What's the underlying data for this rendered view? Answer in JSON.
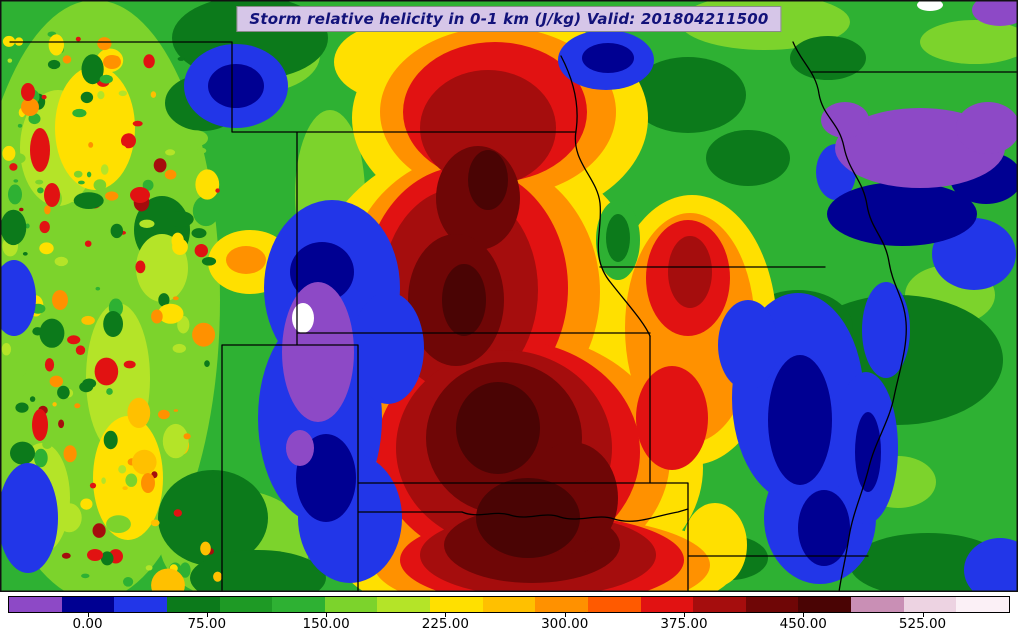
{
  "title": {
    "text": "Storm relative helicity in 0-1 km (J/kg) Valid: 201804211500",
    "bg": "#d6c6e8",
    "fg": "#12127a"
  },
  "map": {
    "description": "Filled contour field of 0-1 km storm relative helicity over the central United States with state borders and rivers",
    "palette": {
      "purple": "#8d49c6",
      "navy": "#000092",
      "blue": "#2236e8",
      "darkgreen": "#0c7a1b",
      "green": "#2eb133",
      "lightgreen": "#7cd32c",
      "yellowgreen": "#b4e428",
      "yellow": "#ffe000",
      "amber": "#ffc000",
      "orange": "#ff9100",
      "darkorange": "#ff5a00",
      "red": "#e11212",
      "darkred": "#a50d0d",
      "maroon": "#6f0606",
      "darkest": "#4a0404",
      "pink": "#c98fb5",
      "lightpink": "#edd3e2",
      "palepink": "#fbf0f6",
      "white": "#ffffff",
      "border": "#000000"
    }
  },
  "chart_data": {
    "type": "heatmap",
    "title": "Storm relative helicity in 0-1 km (J/kg) Valid: 201804211500",
    "field": "storm relative helicity 0-1 km",
    "units": "J/kg",
    "valid": "201804211500",
    "colorbar": {
      "orientation": "horizontal",
      "min": -50,
      "max": 580,
      "tick_values": [
        0,
        75,
        150,
        225,
        300,
        375,
        450,
        525
      ],
      "tick_labels": [
        "0.00",
        "75.00",
        "150.00",
        "225.00",
        "300.00",
        "375.00",
        "450.00",
        "525.00"
      ],
      "colors": [
        "#8d49c6",
        "#000092",
        "#2236e8",
        "#0c7a1b",
        "#1e9a25",
        "#2eb133",
        "#7cd32c",
        "#b4e428",
        "#ffe000",
        "#ffc000",
        "#ff9100",
        "#ff5a00",
        "#e11212",
        "#a50d0d",
        "#6f0606",
        "#4a0404",
        "#c98fb5",
        "#edd3e2",
        "#fbf0f6"
      ]
    },
    "notable_regions": [
      {
        "feature": "maximum axis > 450 J/kg (dark red)",
        "location": "central Kansas southward into western Oklahoma and the Red River area"
      },
      {
        "feature": "secondary maximum 300-400 J/kg",
        "location": "eastern Kansas / far western Missouri"
      },
      {
        "feature": "minimum < 50 J/kg with pocket below 0 (purple/white)",
        "location": "southeast Colorado near the Oklahoma panhandle"
      },
      {
        "feature": "minimum < 0 J/kg (purple band)",
        "location": "northeast corner of domain (Iowa / Illinois)"
      },
      {
        "feature": "low values < 75 J/kg (blue)",
        "location": "southern Missouri and Arkansas along the Mississippi River"
      },
      {
        "feature": "noisy terrain-driven speckle field",
        "location": "Rocky Mountains along the western edge"
      }
    ]
  }
}
